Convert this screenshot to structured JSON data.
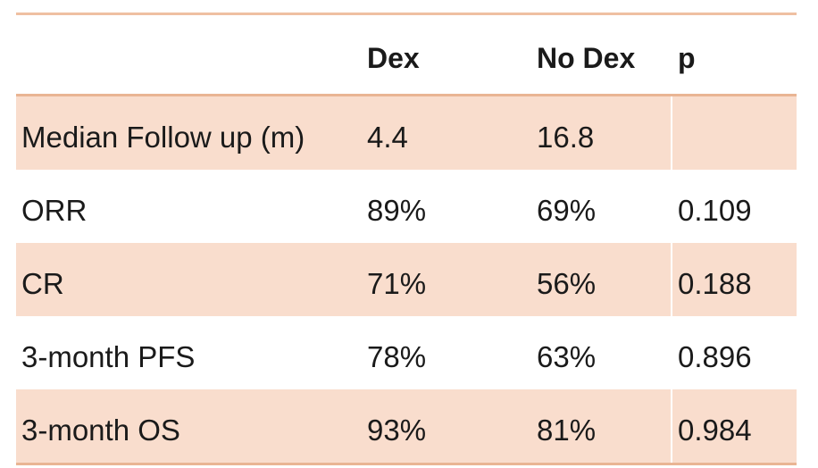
{
  "table": {
    "headers": [
      "",
      "Dex",
      "No Dex",
      "p"
    ],
    "rows": [
      {
        "label": "Median Follow up (m)",
        "dex": "4.4",
        "no_dex": "16.8",
        "p": ""
      },
      {
        "label": "ORR",
        "dex": "89%",
        "no_dex": "69%",
        "p": "0.109"
      },
      {
        "label": "CR",
        "dex": "71%",
        "no_dex": "56%",
        "p": "0.188"
      },
      {
        "label": "3-month PFS",
        "dex": "78%",
        "no_dex": "63%",
        "p": "0.896"
      },
      {
        "label": "3-month OS",
        "dex": "93%",
        "no_dex": "81%",
        "p": "0.984"
      }
    ]
  },
  "colors": {
    "band": "#f9ddcd",
    "rule": "#e9b594"
  }
}
